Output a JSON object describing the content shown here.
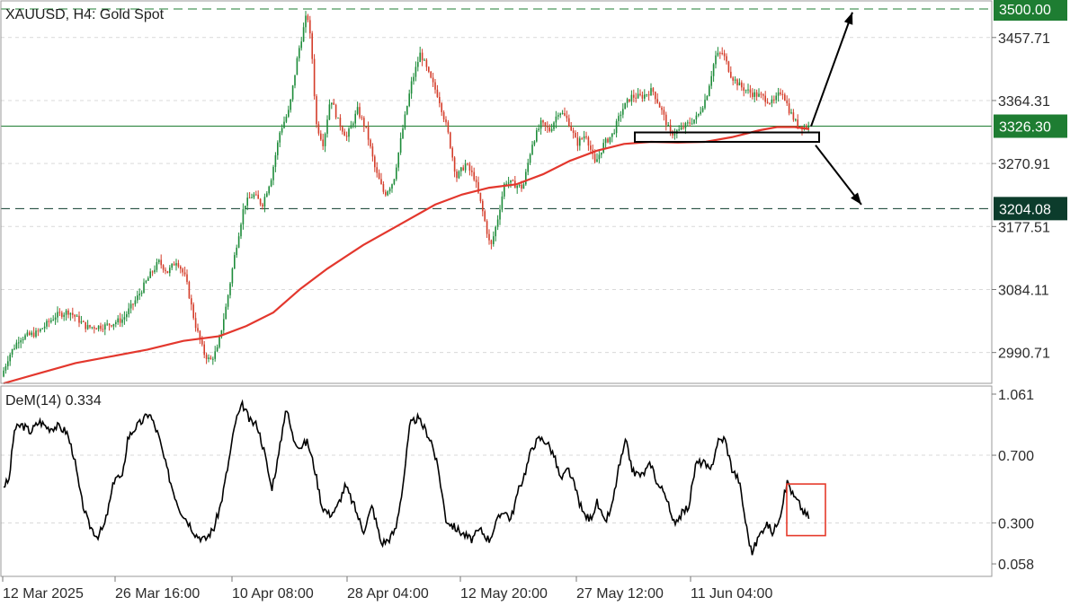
{
  "chart_data": [
    {
      "type": "candlestick",
      "title": "XAUUSD, H4:  Gold Spot",
      "y_ticks": [
        2990.71,
        3084.11,
        3177.51,
        3270.91,
        3364.31,
        3457.71
      ],
      "ylim": [
        2945,
        3512
      ],
      "grid": true,
      "x_ticks": [
        "12 Mar 2025",
        "26 Mar 16:00",
        "10 Apr 08:00",
        "28 Apr 04:00",
        "12 May 20:00",
        "27 May 12:00",
        "11 Jun 04:00"
      ],
      "price_path": [
        [
          0,
          2955
        ],
        [
          8,
          2985
        ],
        [
          20,
          3012
        ],
        [
          40,
          3020
        ],
        [
          60,
          3045
        ],
        [
          75,
          3052
        ],
        [
          95,
          3028
        ],
        [
          115,
          3030
        ],
        [
          135,
          3040
        ],
        [
          150,
          3070
        ],
        [
          165,
          3105
        ],
        [
          175,
          3125
        ],
        [
          185,
          3110
        ],
        [
          195,
          3128
        ],
        [
          205,
          3100
        ],
        [
          215,
          3035
        ],
        [
          225,
          2990
        ],
        [
          232,
          2978
        ],
        [
          240,
          2995
        ],
        [
          250,
          3060
        ],
        [
          260,
          3140
        ],
        [
          270,
          3210
        ],
        [
          280,
          3225
        ],
        [
          290,
          3210
        ],
        [
          300,
          3250
        ],
        [
          310,
          3320
        ],
        [
          320,
          3350
        ],
        [
          330,
          3435
        ],
        [
          340,
          3495
        ],
        [
          345,
          3440
        ],
        [
          350,
          3330
        ],
        [
          358,
          3300
        ],
        [
          366,
          3370
        ],
        [
          374,
          3335
        ],
        [
          384,
          3310
        ],
        [
          396,
          3350
        ],
        [
          406,
          3320
        ],
        [
          416,
          3260
        ],
        [
          426,
          3225
        ],
        [
          436,
          3245
        ],
        [
          446,
          3320
        ],
        [
          456,
          3390
        ],
        [
          466,
          3435
        ],
        [
          476,
          3400
        ],
        [
          486,
          3370
        ],
        [
          496,
          3320
        ],
        [
          506,
          3250
        ],
        [
          516,
          3270
        ],
        [
          526,
          3250
        ],
        [
          536,
          3195
        ],
        [
          544,
          3145
        ],
        [
          552,
          3190
        ],
        [
          560,
          3245
        ],
        [
          570,
          3240
        ],
        [
          580,
          3235
        ],
        [
          590,
          3300
        ],
        [
          600,
          3330
        ],
        [
          610,
          3320
        ],
        [
          620,
          3350
        ],
        [
          630,
          3335
        ],
        [
          640,
          3300
        ],
        [
          650,
          3315
        ],
        [
          660,
          3270
        ],
        [
          670,
          3300
        ],
        [
          680,
          3315
        ],
        [
          690,
          3350
        ],
        [
          700,
          3370
        ],
        [
          712,
          3370
        ],
        [
          724,
          3380
        ],
        [
          734,
          3350
        ],
        [
          744,
          3315
        ],
        [
          754,
          3320
        ],
        [
          764,
          3330
        ],
        [
          774,
          3340
        ],
        [
          784,
          3370
        ],
        [
          794,
          3430
        ],
        [
          802,
          3435
        ],
        [
          812,
          3400
        ],
        [
          822,
          3385
        ],
        [
          834,
          3375
        ],
        [
          846,
          3370
        ],
        [
          858,
          3360
        ],
        [
          868,
          3380
        ],
        [
          876,
          3350
        ],
        [
          884,
          3330
        ],
        [
          890,
          3326
        ],
        [
          896,
          3326
        ]
      ],
      "ma_path": [
        [
          0,
          2945
        ],
        [
          40,
          2960
        ],
        [
          80,
          2975
        ],
        [
          120,
          2985
        ],
        [
          160,
          2995
        ],
        [
          200,
          3008
        ],
        [
          240,
          3015
        ],
        [
          270,
          3030
        ],
        [
          300,
          3050
        ],
        [
          330,
          3085
        ],
        [
          360,
          3115
        ],
        [
          400,
          3150
        ],
        [
          440,
          3180
        ],
        [
          480,
          3210
        ],
        [
          510,
          3225
        ],
        [
          540,
          3235
        ],
        [
          570,
          3240
        ],
        [
          600,
          3255
        ],
        [
          630,
          3275
        ],
        [
          660,
          3290
        ],
        [
          690,
          3300
        ],
        [
          720,
          3303
        ],
        [
          750,
          3302
        ],
        [
          780,
          3303
        ],
        [
          810,
          3310
        ],
        [
          840,
          3320
        ],
        [
          860,
          3325
        ],
        [
          880,
          3325
        ],
        [
          896,
          3322
        ]
      ],
      "levels": [
        {
          "label": "3500.00",
          "value": 3500.0,
          "color": "#1e7d32",
          "style": "dashed"
        },
        {
          "label": "3326.30",
          "value": 3326.3,
          "color": "#1e7d32",
          "style": "solid"
        },
        {
          "label": "3204.08",
          "value": 3204.08,
          "color": "#0c3c2c",
          "style": "dashed"
        }
      ],
      "annotations": {
        "consolidation_box": {
          "x_from": 706,
          "x_to": 911,
          "y_from": 3317,
          "y_to": 3303
        },
        "arrow_up": {
          "from": [
            902,
            3326
          ],
          "to": [
            948,
            3495
          ]
        },
        "arrow_down": {
          "from": [
            907,
            3298
          ],
          "to": [
            958,
            3210
          ]
        }
      },
      "colors": {
        "bull": "#1e8c3a",
        "bear": "#d43d2a",
        "ma": "#e3372d",
        "arrow": "#000000"
      }
    },
    {
      "type": "line",
      "title": "DeM(14) 0.334",
      "y_ticks": [
        1.061,
        0.7,
        0.3,
        0.058
      ],
      "ylim": [
        0.0,
        1.061
      ],
      "grid": true,
      "series": [
        {
          "values": [
            [
              0,
              0.52
            ],
            [
              6,
              0.55
            ],
            [
              12,
              0.85
            ],
            [
              20,
              0.88
            ],
            [
              30,
              0.84
            ],
            [
              40,
              0.9
            ],
            [
              50,
              0.86
            ],
            [
              60,
              0.87
            ],
            [
              70,
              0.84
            ],
            [
              78,
              0.7
            ],
            [
              86,
              0.45
            ],
            [
              94,
              0.3
            ],
            [
              104,
              0.22
            ],
            [
              112,
              0.28
            ],
            [
              118,
              0.42
            ],
            [
              124,
              0.58
            ],
            [
              132,
              0.56
            ],
            [
              138,
              0.8
            ],
            [
              146,
              0.86
            ],
            [
              154,
              0.9
            ],
            [
              162,
              0.95
            ],
            [
              172,
              0.82
            ],
            [
              180,
              0.65
            ],
            [
              188,
              0.5
            ],
            [
              196,
              0.38
            ],
            [
              206,
              0.3
            ],
            [
              214,
              0.23
            ],
            [
              224,
              0.2
            ],
            [
              234,
              0.27
            ],
            [
              242,
              0.42
            ],
            [
              250,
              0.65
            ],
            [
              258,
              0.9
            ],
            [
              266,
              1.0
            ],
            [
              274,
              0.9
            ],
            [
              282,
              0.88
            ],
            [
              290,
              0.72
            ],
            [
              298,
              0.5
            ],
            [
              306,
              0.7
            ],
            [
              314,
              0.99
            ],
            [
              322,
              0.8
            ],
            [
              330,
              0.75
            ],
            [
              338,
              0.78
            ],
            [
              346,
              0.62
            ],
            [
              354,
              0.4
            ],
            [
              362,
              0.35
            ],
            [
              370,
              0.38
            ],
            [
              380,
              0.52
            ],
            [
              390,
              0.4
            ],
            [
              400,
              0.25
            ],
            [
              410,
              0.4
            ],
            [
              420,
              0.18
            ],
            [
              428,
              0.2
            ],
            [
              436,
              0.26
            ],
            [
              444,
              0.52
            ],
            [
              452,
              0.88
            ],
            [
              460,
              0.92
            ],
            [
              468,
              0.86
            ],
            [
              476,
              0.78
            ],
            [
              484,
              0.6
            ],
            [
              492,
              0.32
            ],
            [
              500,
              0.28
            ],
            [
              510,
              0.24
            ],
            [
              520,
              0.2
            ],
            [
              530,
              0.26
            ],
            [
              540,
              0.2
            ],
            [
              548,
              0.3
            ],
            [
              556,
              0.38
            ],
            [
              564,
              0.32
            ],
            [
              572,
              0.48
            ],
            [
              580,
              0.6
            ],
            [
              588,
              0.75
            ],
            [
              596,
              0.8
            ],
            [
              604,
              0.78
            ],
            [
              612,
              0.7
            ],
            [
              620,
              0.55
            ],
            [
              628,
              0.62
            ],
            [
              636,
              0.5
            ],
            [
              644,
              0.36
            ],
            [
              652,
              0.32
            ],
            [
              660,
              0.42
            ],
            [
              668,
              0.3
            ],
            [
              676,
              0.38
            ],
            [
              684,
              0.62
            ],
            [
              692,
              0.78
            ],
            [
              700,
              0.6
            ],
            [
              710,
              0.58
            ],
            [
              720,
              0.65
            ],
            [
              728,
              0.52
            ],
            [
              736,
              0.48
            ],
            [
              744,
              0.3
            ],
            [
              752,
              0.34
            ],
            [
              762,
              0.4
            ],
            [
              770,
              0.65
            ],
            [
              778,
              0.66
            ],
            [
              786,
              0.6
            ],
            [
              794,
              0.78
            ],
            [
              802,
              0.8
            ],
            [
              810,
              0.62
            ],
            [
              818,
              0.55
            ],
            [
              826,
              0.28
            ],
            [
              832,
              0.12
            ],
            [
              840,
              0.22
            ],
            [
              848,
              0.3
            ],
            [
              856,
              0.24
            ],
            [
              864,
              0.36
            ],
            [
              872,
              0.55
            ],
            [
              878,
              0.46
            ],
            [
              884,
              0.42
            ],
            [
              890,
              0.36
            ],
            [
              896,
              0.334
            ]
          ]
        }
      ],
      "annotations": {
        "highlight_box": {
          "x_from": 875,
          "x_to": 918,
          "y_from": 0.53,
          "y_to": 0.225
        }
      },
      "colors": {
        "line": "#000000",
        "highlight": "#e53a2b"
      }
    }
  ]
}
